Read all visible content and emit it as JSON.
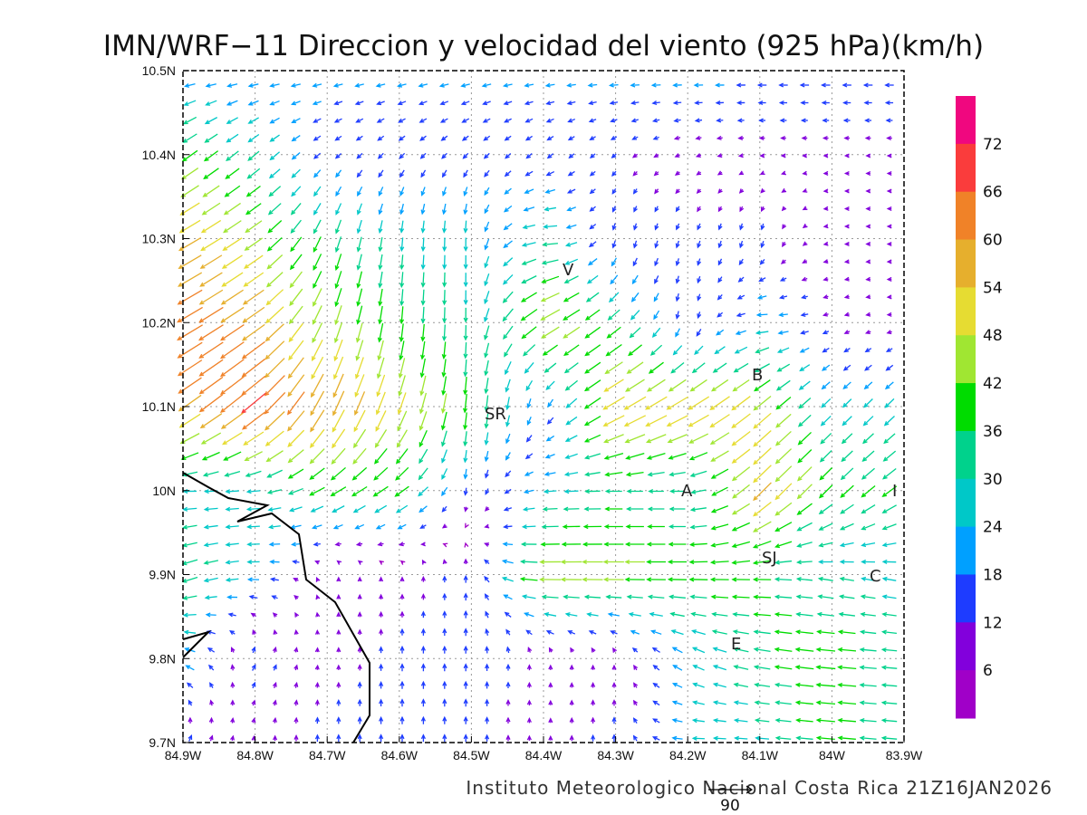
{
  "title": "IMN/WRF−11 Direccion y velocidad del viento (925 hPa)(km/h)",
  "footer": "Instituto Meteorologico Nacional Costa Rica  21Z16JAN2026",
  "reference_vector": {
    "label": "90",
    "speed": 90
  },
  "chart_data": {
    "type": "vector-field",
    "title": "IMN/WRF−11 Direccion y velocidad del viento (925 hPa)(km/h)",
    "units": "km/h",
    "lon_ticks": [
      "84.9W",
      "84.8W",
      "84.7W",
      "84.6W",
      "84.5W",
      "84.4W",
      "84.3W",
      "84.2W",
      "84.1W",
      "84W",
      "83.9W"
    ],
    "lat_ticks": [
      "10.5N",
      "10.4N",
      "10.3N",
      "10.2N",
      "10.1N",
      "10N",
      "9.9N",
      "9.8N",
      "9.7N"
    ],
    "lon_range": [
      -84.9,
      -83.9
    ],
    "lat_range": [
      9.7,
      10.5
    ],
    "grid_note": "rows follow lat_ticks (north to south), columns follow lon_ticks (west to east); direction = bearing the wind blows toward, degrees CCW from east",
    "speed": [
      [
        20,
        20,
        20,
        20,
        20,
        20,
        20,
        20,
        20,
        20,
        20
      ],
      [
        40,
        30,
        15,
        15,
        15,
        15,
        12,
        10,
        8,
        8,
        8
      ],
      [
        55,
        45,
        35,
        28,
        28,
        35,
        15,
        15,
        15,
        8,
        8
      ],
      [
        65,
        58,
        45,
        38,
        30,
        50,
        35,
        15,
        25,
        10,
        8
      ],
      [
        58,
        68,
        60,
        50,
        40,
        15,
        55,
        55,
        50,
        25,
        28
      ],
      [
        28,
        28,
        38,
        38,
        15,
        25,
        35,
        30,
        55,
        38,
        38
      ],
      [
        36,
        25,
        8,
        8,
        15,
        48,
        45,
        40,
        38,
        30,
        28
      ],
      [
        25,
        15,
        8,
        15,
        15,
        10,
        8,
        25,
        35,
        42,
        30
      ],
      [
        15,
        8,
        15,
        15,
        15,
        8,
        15,
        25,
        28,
        40,
        30
      ]
    ],
    "direction": [
      [
        185,
        185,
        190,
        190,
        190,
        185,
        180,
        180,
        180,
        180,
        180
      ],
      [
        215,
        220,
        220,
        225,
        225,
        220,
        220,
        200,
        180,
        180,
        180
      ],
      [
        210,
        215,
        250,
        265,
        270,
        180,
        260,
        250,
        260,
        180,
        180
      ],
      [
        210,
        215,
        250,
        265,
        270,
        210,
        220,
        270,
        180,
        200,
        180
      ],
      [
        215,
        220,
        245,
        250,
        265,
        250,
        210,
        210,
        220,
        225,
        225
      ],
      [
        180,
        185,
        210,
        215,
        270,
        185,
        180,
        180,
        225,
        225,
        215
      ],
      [
        200,
        180,
        90,
        90,
        90,
        180,
        180,
        180,
        180,
        170,
        170
      ],
      [
        160,
        60,
        90,
        90,
        90,
        90,
        90,
        150,
        170,
        175,
        175
      ],
      [
        60,
        90,
        90,
        90,
        90,
        90,
        90,
        180,
        175,
        175,
        175
      ]
    ],
    "colorbar": {
      "labels": [
        "72",
        "66",
        "60",
        "54",
        "48",
        "42",
        "36",
        "30",
        "24",
        "18",
        "12",
        "6"
      ],
      "bounds": [
        6,
        12,
        18,
        24,
        30,
        36,
        42,
        48,
        54,
        60,
        66,
        72
      ],
      "colors": [
        "#f0077f",
        "#fa3c3c",
        "#f08228",
        "#e6af2d",
        "#e6dc32",
        "#a0e632",
        "#00dc00",
        "#00d28c",
        "#00c8c8",
        "#00a0ff",
        "#1e3cff",
        "#8200dc",
        "#a000c8"
      ]
    }
  },
  "cities": [
    {
      "label": "V"
    },
    {
      "label": "SR"
    },
    {
      "label": "B"
    },
    {
      "label": "A"
    },
    {
      "label": "I"
    },
    {
      "label": "SJ"
    },
    {
      "label": "C"
    },
    {
      "label": "E"
    }
  ]
}
